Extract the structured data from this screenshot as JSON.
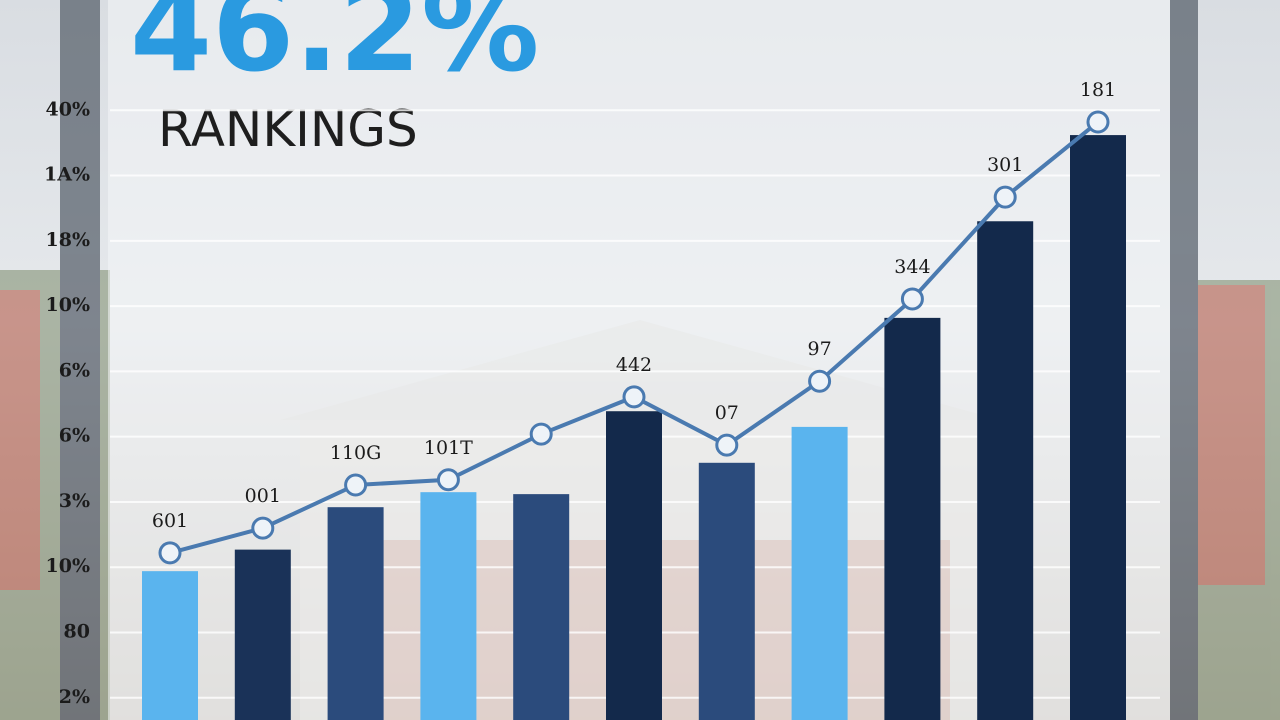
{
  "chart_data": {
    "type": "bar-line",
    "title": "46.2%",
    "subtitle": "RANKINGS",
    "ylim": [
      -0.34,
      10
    ],
    "yticks": [
      {
        "value": 0,
        "label": "2%"
      },
      {
        "value": 1,
        "label": "80"
      },
      {
        "value": 2,
        "label": "10%"
      },
      {
        "value": 3,
        "label": "3%"
      },
      {
        "value": 4,
        "label": "6%"
      },
      {
        "value": 5,
        "label": "6%"
      },
      {
        "value": 6,
        "label": "10%"
      },
      {
        "value": 7,
        "label": "18%"
      },
      {
        "value": 8,
        "label": "1A%"
      },
      {
        "value": 9,
        "label": "40%"
      }
    ],
    "grid": true,
    "series": [
      {
        "type": "bar",
        "colors": [
          "#5ab4ee",
          "#1a3258",
          "#2b4b7c",
          "#5ab4ee",
          "#2b4b7c",
          "#13294b",
          "#2b4b7c",
          "#5ab4ee",
          "#13294b",
          "#13294b",
          "#13294b"
        ],
        "values": [
          1.94,
          2.27,
          2.92,
          3.15,
          3.12,
          4.39,
          3.6,
          4.15,
          5.82,
          7.3,
          8.62
        ]
      },
      {
        "type": "line",
        "color": "#4a7ab0",
        "values": [
          2.22,
          2.6,
          3.26,
          3.34,
          4.04,
          4.61,
          3.87,
          4.85,
          6.11,
          7.67,
          8.82
        ],
        "value_labels": [
          "601",
          "001",
          "110G",
          "101T",
          null,
          "442",
          "07",
          "97",
          "344",
          "301",
          "181"
        ]
      }
    ]
  }
}
